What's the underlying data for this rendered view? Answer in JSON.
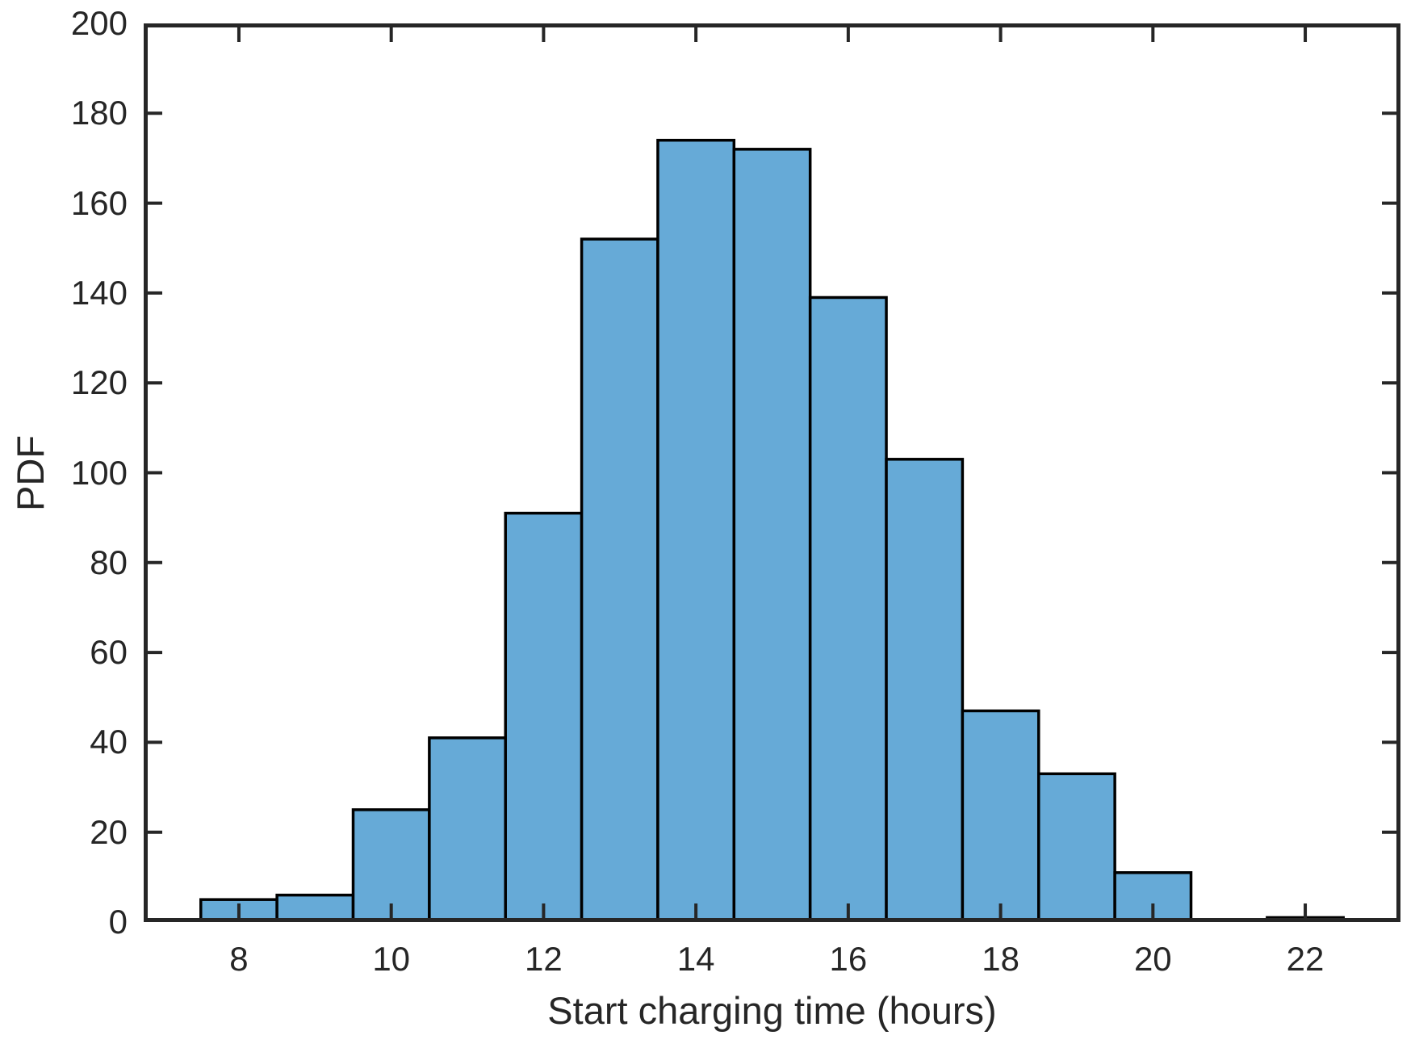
{
  "figure": {
    "xlabel": "Start charging time (hours)",
    "ylabel": "PDF"
  },
  "chart_data": {
    "type": "bar",
    "subtype": "histogram",
    "title": "",
    "xlabel": "Start charging time (hours)",
    "ylabel": "PDF",
    "bin_centers": [
      8,
      9,
      10,
      11,
      12,
      13,
      14,
      15,
      16,
      17,
      18,
      19,
      20,
      21,
      22
    ],
    "bin_edges": [
      7.5,
      8.5,
      9.5,
      10.5,
      11.5,
      12.5,
      13.5,
      14.5,
      15.5,
      16.5,
      17.5,
      18.5,
      19.5,
      20.5,
      21.5,
      22.5
    ],
    "values": [
      5,
      6,
      25,
      41,
      91,
      152,
      174,
      172,
      139,
      103,
      47,
      33,
      11,
      0,
      1
    ],
    "total_samples": 1000,
    "xlim": [
      6.75,
      23.25
    ],
    "ylim": [
      0,
      200
    ],
    "xticks": [
      8,
      10,
      12,
      14,
      16,
      18,
      20,
      22
    ],
    "yticks": [
      0,
      20,
      40,
      60,
      80,
      100,
      120,
      140,
      160,
      180,
      200
    ],
    "grid": false,
    "legend": null,
    "box": "on",
    "tick_direction": "in",
    "colors": {
      "bar_fill": "#66AAD7",
      "bar_edge": "#000000",
      "axis": "#262626",
      "text": "#262626",
      "background": "#ffffff"
    }
  }
}
